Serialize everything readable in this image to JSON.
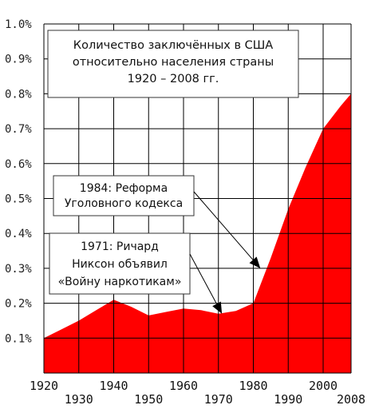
{
  "chart_data": {
    "type": "area",
    "title_lines": [
      "Количество заключённых в США",
      "относительно населения страны",
      "1920 – 2008 гг."
    ],
    "x": [
      1920,
      1925,
      1930,
      1935,
      1940,
      1945,
      1950,
      1955,
      1960,
      1965,
      1970,
      1975,
      1980,
      1985,
      1990,
      1995,
      2000,
      2005,
      2008
    ],
    "values": [
      0.1,
      0.125,
      0.15,
      0.18,
      0.21,
      0.19,
      0.165,
      0.175,
      0.185,
      0.18,
      0.17,
      0.178,
      0.2,
      0.33,
      0.47,
      0.59,
      0.7,
      0.765,
      0.8
    ],
    "xlim": [
      1920,
      2008
    ],
    "ylim": [
      0,
      1.0
    ],
    "y_ticks": [
      "0.1%",
      "0.2%",
      "0.3%",
      "0.4%",
      "0.5%",
      "0.6%",
      "0.7%",
      "0.8%",
      "0.9%",
      "1.0%"
    ],
    "x_ticks_upper": [
      "1920",
      "1940",
      "1960",
      "1980",
      "2000"
    ],
    "x_ticks_lower": [
      "1930",
      "1950",
      "1970",
      "1990",
      "2008"
    ],
    "fill_color": "#ff0000",
    "grid": true,
    "annotations": [
      {
        "lines": [
          "1984: Реформа",
          "Уголовного кодекса"
        ],
        "target_year": 1982,
        "target_value": 0.3
      },
      {
        "lines": [
          "1971: Ричард",
          "Никсон объявил",
          "«Войну наркотикам»"
        ],
        "target_year": 1971,
        "target_value": 0.17
      }
    ]
  }
}
